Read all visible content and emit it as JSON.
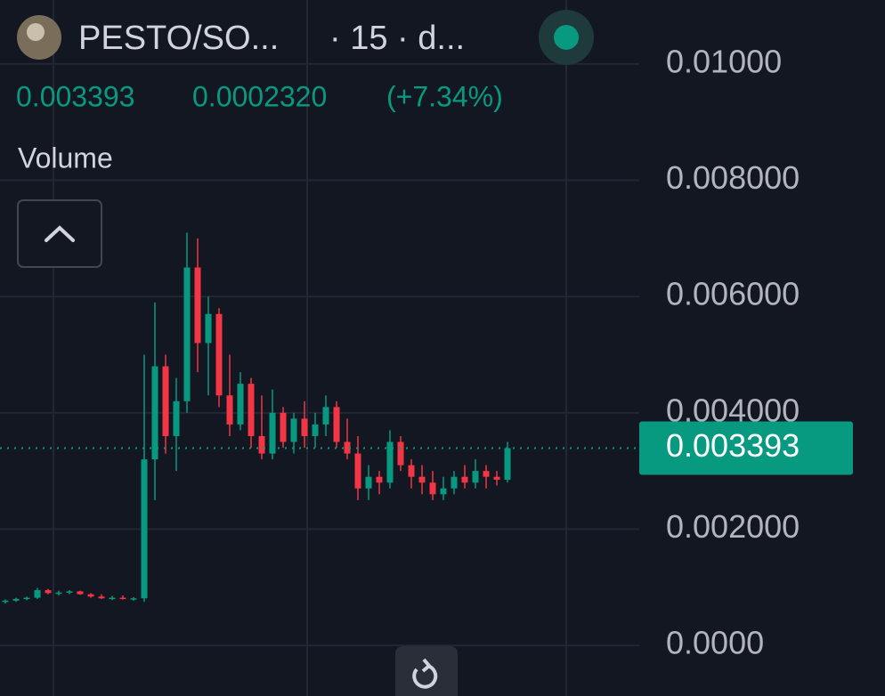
{
  "chart_data": {
    "type": "candlestick",
    "title": "PESTO/SO...",
    "interval": "· 15 · d...",
    "last_price": 0.003393,
    "change": "0.0002320",
    "change_pct": "(+7.34%)",
    "volume_label": "Volume",
    "up_color": "#089981",
    "down_color": "#f23645",
    "grid": true,
    "ylim": [
      -0.00087,
      0.0111
    ],
    "yticks": [
      {
        "value": 0,
        "label": "0.0000"
      },
      {
        "value": 0.002,
        "label": "0.002000"
      },
      {
        "value": 0.004,
        "label": "0.004000"
      },
      {
        "value": 0.006,
        "label": "0.006000"
      },
      {
        "value": 0.008,
        "label": "0.008000"
      },
      {
        "value": 0.01,
        "label": "0.01000"
      }
    ],
    "open": [
      0.00075,
      0.00077,
      0.0008,
      0.00082,
      0.00095,
      0.0009,
      0.00091,
      0.00093,
      0.00088,
      0.00084,
      0.00081,
      0.00082,
      0.0008,
      0.00081,
      0.0032,
      0.0048,
      0.0036,
      0.0042,
      0.0065,
      0.0052,
      0.0057,
      0.0043,
      0.0038,
      0.0045,
      0.0036,
      0.0033,
      0.004,
      0.0035,
      0.0039,
      0.0036,
      0.0038,
      0.0041,
      0.0035,
      0.0033,
      0.0027,
      0.0029,
      0.0028,
      0.0035,
      0.0031,
      0.0029,
      0.0028,
      0.0026,
      0.0027,
      0.0029,
      0.0028,
      0.003,
      0.0029,
      0.00285
    ],
    "high": [
      0.00079,
      0.00082,
      0.00084,
      0.00099,
      0.00097,
      0.00094,
      0.00095,
      0.00094,
      0.0009,
      0.00088,
      0.00085,
      0.00086,
      0.00083,
      0.005,
      0.0059,
      0.005,
      0.0046,
      0.0071,
      0.007,
      0.006,
      0.0058,
      0.005,
      0.0047,
      0.0046,
      0.0043,
      0.0044,
      0.0041,
      0.004,
      0.0042,
      0.004,
      0.0043,
      0.0042,
      0.0039,
      0.0036,
      0.0031,
      0.003,
      0.0037,
      0.0036,
      0.0032,
      0.0031,
      0.003,
      0.0029,
      0.003,
      0.0031,
      0.0032,
      0.0031,
      0.003,
      0.0035
    ],
    "low": [
      0.00072,
      0.00075,
      0.00078,
      0.0008,
      0.00088,
      0.00086,
      0.00088,
      0.00087,
      0.00082,
      0.0008,
      0.00078,
      0.00079,
      0.00077,
      0.00075,
      0.0025,
      0.0033,
      0.003,
      0.004,
      0.0047,
      0.0043,
      0.0041,
      0.0036,
      0.0037,
      0.0034,
      0.0032,
      0.0032,
      0.0034,
      0.0033,
      0.0034,
      0.0034,
      0.0036,
      0.0034,
      0.0032,
      0.0025,
      0.0025,
      0.0026,
      0.0027,
      0.003,
      0.0027,
      0.0026,
      0.0025,
      0.0025,
      0.0026,
      0.0027,
      0.0027,
      0.0027,
      0.00275,
      0.0028
    ],
    "close": [
      0.00077,
      0.0008,
      0.00082,
      0.00095,
      0.0009,
      0.00091,
      0.00093,
      0.00088,
      0.00084,
      0.00081,
      0.00082,
      0.0008,
      0.00081,
      0.0032,
      0.0048,
      0.0036,
      0.0042,
      0.0065,
      0.0052,
      0.0057,
      0.0043,
      0.0038,
      0.0045,
      0.0036,
      0.0033,
      0.004,
      0.0035,
      0.0039,
      0.0036,
      0.0038,
      0.0041,
      0.0035,
      0.0033,
      0.0027,
      0.0029,
      0.0028,
      0.0035,
      0.0031,
      0.0029,
      0.0028,
      0.0026,
      0.0027,
      0.0029,
      0.0028,
      0.003,
      0.0029,
      0.00285,
      0.003393
    ]
  }
}
